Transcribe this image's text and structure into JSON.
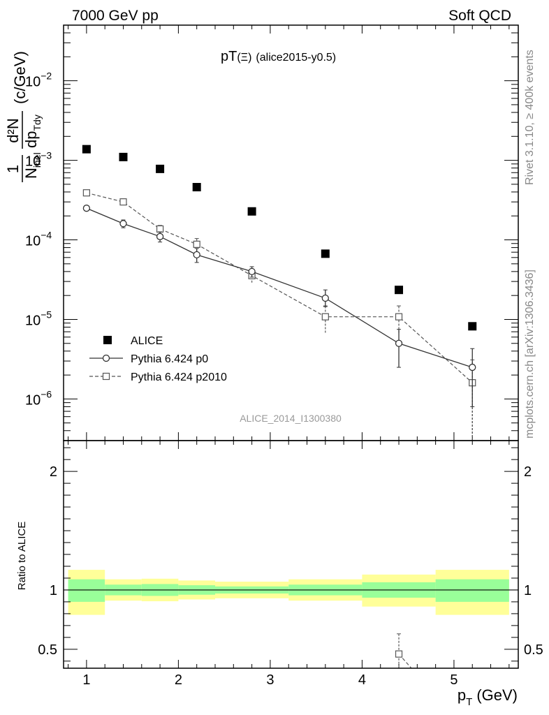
{
  "header": {
    "left": "7000 GeV pp",
    "right": "Soft QCD"
  },
  "side_labels": {
    "rivet": "Rivet 3.1.10, ≥ 400k events",
    "mcplots": "mcplots.cern.ch [arXiv:1306.3436]"
  },
  "colors": {
    "data": "#000000",
    "p0": "#333333",
    "p2010": "#555555",
    "band_inner": "#99ff99",
    "band_outer": "#ffff99",
    "watermark": "#999999"
  },
  "chart_data": [
    {
      "type": "scatter",
      "panel": "main",
      "title": "pT(Ξ) (alice2015-y0.5)",
      "title_main": "pT",
      "title_sym": "(Ξ)",
      "title_tag": "(alice2015-y0.5)",
      "analysis_label": "ALICE_2014_I1300380",
      "ylabel_parts": {
        "one": "1",
        "N": "N",
        "inel": "inel",
        "d2N": "d²N",
        "dp": "dp",
        "Tdy": "Tdy",
        "unit": "(c/GeV)"
      },
      "yscale": "log",
      "ylim": [
        3e-07,
        0.05
      ],
      "xlim": [
        0.75,
        5.7
      ],
      "yticks": [
        {
          "value": 1e-06,
          "mant": "10",
          "exp": "−6"
        },
        {
          "value": 1e-05,
          "mant": "10",
          "exp": "−5"
        },
        {
          "value": 0.0001,
          "mant": "10",
          "exp": "−4"
        },
        {
          "value": 0.001,
          "mant": "10",
          "exp": "−3"
        },
        {
          "value": 0.01,
          "mant": "10",
          "exp": "−2"
        }
      ],
      "legend_position": "lower-left",
      "series": [
        {
          "name": "ALICE",
          "style": "markers",
          "x": [
            1.0,
            1.4,
            1.8,
            2.2,
            2.8,
            3.6,
            4.4,
            5.2
          ],
          "y": [
            0.00138,
            0.0011,
            0.00078,
            0.00046,
            0.000228,
            6.7e-05,
            2.35e-05,
            8.2e-06
          ]
        },
        {
          "name": "Pythia 6.424 p0",
          "style": "solid-circle",
          "x": [
            1.0,
            1.4,
            1.8,
            2.2,
            2.8,
            3.6,
            4.4,
            5.2
          ],
          "y": [
            0.00025,
            0.00016,
            0.00011,
            6.5e-05,
            4e-05,
            1.85e-05,
            5e-06,
            2.5e-06
          ],
          "ylo": [
            0.000235,
            0.000142,
            9.4e-05,
            5.2e-05,
            3.4e-05,
            1.45e-05,
            2.5e-06,
            8e-07
          ],
          "yhi": [
            0.000265,
            0.000178,
            0.000126,
            7.8e-05,
            4.6e-05,
            2.35e-05,
            7.5e-06,
            4.3e-06
          ]
        },
        {
          "name": "Pythia 6.424 p2010",
          "style": "dashed-square",
          "x": [
            1.0,
            1.4,
            1.8,
            2.2,
            2.8,
            3.6,
            4.4,
            5.2
          ],
          "y": [
            0.00039,
            0.0003,
            0.000137,
            8.8e-05,
            3.55e-05,
            1.08e-05,
            1.08e-05,
            1.6e-06
          ],
          "ylo": [
            0.000372,
            0.000272,
            0.000122,
            7.2e-05,
            2.9e-05,
            6.8e-06,
            6.8e-06,
            1e-07
          ],
          "yhi": [
            0.000408,
            0.000328,
            0.000152,
            0.000104,
            4.2e-05,
            1.48e-05,
            1.48e-05,
            3.1e-06
          ]
        }
      ]
    },
    {
      "type": "scatter",
      "panel": "ratio",
      "ylabel": "Ratio to ALICE",
      "xlabel_main": "p",
      "xlabel_sub": "T",
      "xlabel_unit": "(GeV)",
      "xlim": [
        0.75,
        5.7
      ],
      "ylim": [
        0.34,
        2.26
      ],
      "xticks": [
        "1",
        "2",
        "3",
        "4",
        "5"
      ],
      "yticks": [
        "0.5",
        "1",
        "2"
      ],
      "bins": [
        {
          "x0": 0.8,
          "x1": 1.2,
          "inner": [
            0.9,
            1.09
          ],
          "outer": [
            0.79,
            1.17
          ]
        },
        {
          "x0": 1.2,
          "x1": 1.6,
          "inner": [
            0.955,
            1.045
          ],
          "outer": [
            0.91,
            1.09
          ]
        },
        {
          "x0": 1.6,
          "x1": 2.0,
          "inner": [
            0.95,
            1.05
          ],
          "outer": [
            0.905,
            1.095
          ]
        },
        {
          "x0": 2.0,
          "x1": 2.4,
          "inner": [
            0.96,
            1.04
          ],
          "outer": [
            0.92,
            1.08
          ]
        },
        {
          "x0": 2.4,
          "x1": 3.2,
          "inner": [
            0.97,
            1.03
          ],
          "outer": [
            0.93,
            1.07
          ]
        },
        {
          "x0": 3.2,
          "x1": 4.0,
          "inner": [
            0.955,
            1.045
          ],
          "outer": [
            0.91,
            1.09
          ]
        },
        {
          "x0": 4.0,
          "x1": 4.8,
          "inner": [
            0.935,
            1.065
          ],
          "outer": [
            0.86,
            1.13
          ]
        },
        {
          "x0": 4.8,
          "x1": 5.6,
          "inner": [
            0.9,
            1.09
          ],
          "outer": [
            0.79,
            1.17
          ]
        }
      ],
      "series": [
        {
          "name": "Pythia 6.424 p2010",
          "style": "dashed-square",
          "x": [
            4.4
          ],
          "y": [
            0.46
          ],
          "ylo": [
            0.29
          ],
          "yhi": [
            0.63
          ]
        }
      ]
    }
  ]
}
